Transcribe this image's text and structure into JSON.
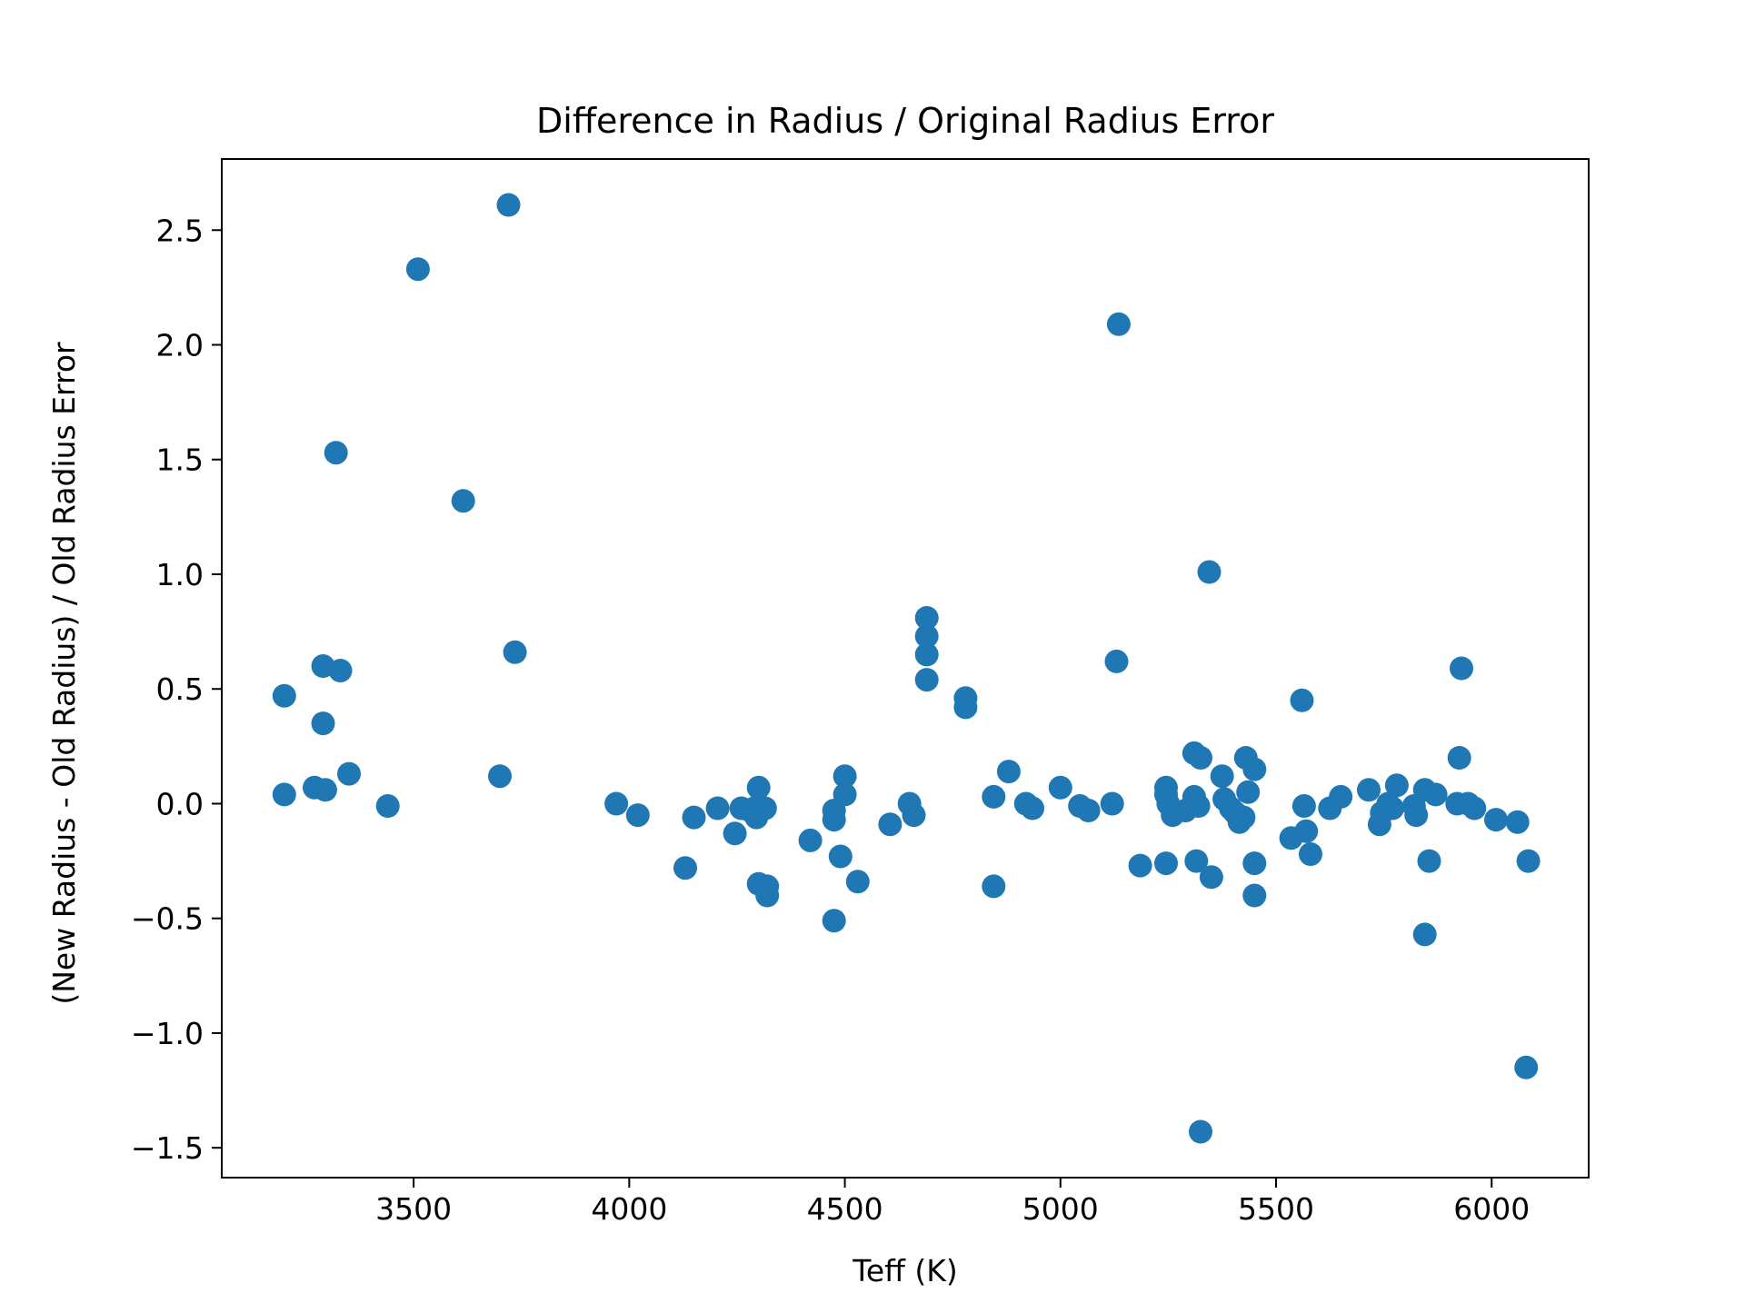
{
  "chart_data": {
    "type": "scatter",
    "title": "Difference in Radius / Original Radius Error",
    "xlabel": "Teff (K)",
    "ylabel": "(New Radius - Old Radius) / Old Radius Error",
    "xlim": [
      3055,
      6225
    ],
    "ylim": [
      -1.63,
      2.81
    ],
    "xticks": [
      3500,
      4000,
      4500,
      5000,
      5500,
      6000
    ],
    "xtick_labels": [
      "3500",
      "4000",
      "4500",
      "5000",
      "5500",
      "6000"
    ],
    "yticks": [
      -1.5,
      -1.0,
      -0.5,
      0.0,
      0.5,
      1.0,
      1.5,
      2.0,
      2.5
    ],
    "ytick_labels": [
      "−1.5",
      "−1.0",
      "−0.5",
      "0.0",
      "0.5",
      "1.0",
      "1.5",
      "2.0",
      "2.5"
    ],
    "grid": false,
    "marker_color": "#1f77b4",
    "points": [
      [
        3200,
        0.47
      ],
      [
        3200,
        0.04
      ],
      [
        3270,
        0.07
      ],
      [
        3290,
        0.6
      ],
      [
        3290,
        0.35
      ],
      [
        3295,
        0.06
      ],
      [
        3320,
        1.53
      ],
      [
        3330,
        0.58
      ],
      [
        3350,
        0.13
      ],
      [
        3440,
        -0.01
      ],
      [
        3510,
        2.33
      ],
      [
        3615,
        1.32
      ],
      [
        3700,
        0.12
      ],
      [
        3720,
        2.61
      ],
      [
        3735,
        0.66
      ],
      [
        3970,
        0.0
      ],
      [
        4020,
        -0.05
      ],
      [
        4130,
        -0.28
      ],
      [
        4150,
        -0.06
      ],
      [
        4205,
        -0.02
      ],
      [
        4245,
        -0.13
      ],
      [
        4260,
        -0.02
      ],
      [
        4280,
        -0.03
      ],
      [
        4290,
        -0.02
      ],
      [
        4295,
        -0.06
      ],
      [
        4300,
        0.07
      ],
      [
        4300,
        -0.35
      ],
      [
        4315,
        -0.02
      ],
      [
        4320,
        -0.36
      ],
      [
        4320,
        -0.4
      ],
      [
        4420,
        -0.16
      ],
      [
        4475,
        -0.03
      ],
      [
        4475,
        -0.07
      ],
      [
        4475,
        -0.51
      ],
      [
        4490,
        -0.23
      ],
      [
        4500,
        0.12
      ],
      [
        4500,
        0.04
      ],
      [
        4530,
        -0.34
      ],
      [
        4605,
        -0.09
      ],
      [
        4650,
        0.0
      ],
      [
        4660,
        -0.05
      ],
      [
        4690,
        0.81
      ],
      [
        4690,
        0.73
      ],
      [
        4690,
        0.65
      ],
      [
        4690,
        0.54
      ],
      [
        4780,
        0.46
      ],
      [
        4780,
        0.42
      ],
      [
        4845,
        0.03
      ],
      [
        4845,
        -0.36
      ],
      [
        4880,
        0.14
      ],
      [
        4920,
        0.0
      ],
      [
        4935,
        -0.02
      ],
      [
        5000,
        0.07
      ],
      [
        5045,
        -0.01
      ],
      [
        5065,
        -0.03
      ],
      [
        5120,
        0.0
      ],
      [
        5130,
        0.62
      ],
      [
        5135,
        2.09
      ],
      [
        5185,
        -0.27
      ],
      [
        5245,
        -0.26
      ],
      [
        5245,
        0.07
      ],
      [
        5245,
        0.04
      ],
      [
        5250,
        0.0
      ],
      [
        5260,
        -0.05
      ],
      [
        5290,
        -0.03
      ],
      [
        5310,
        0.22
      ],
      [
        5310,
        0.03
      ],
      [
        5315,
        -0.25
      ],
      [
        5320,
        -0.01
      ],
      [
        5325,
        0.2
      ],
      [
        5325,
        -1.43
      ],
      [
        5345,
        1.01
      ],
      [
        5350,
        -0.32
      ],
      [
        5375,
        0.12
      ],
      [
        5380,
        0.02
      ],
      [
        5395,
        -0.02
      ],
      [
        5405,
        -0.04
      ],
      [
        5415,
        -0.08
      ],
      [
        5425,
        -0.06
      ],
      [
        5430,
        0.2
      ],
      [
        5435,
        0.05
      ],
      [
        5450,
        0.15
      ],
      [
        5450,
        -0.26
      ],
      [
        5450,
        -0.4
      ],
      [
        5535,
        -0.15
      ],
      [
        5560,
        0.45
      ],
      [
        5565,
        -0.01
      ],
      [
        5570,
        -0.12
      ],
      [
        5580,
        -0.22
      ],
      [
        5625,
        -0.02
      ],
      [
        5650,
        0.03
      ],
      [
        5715,
        0.06
      ],
      [
        5740,
        -0.09
      ],
      [
        5745,
        -0.04
      ],
      [
        5760,
        0.0
      ],
      [
        5770,
        -0.02
      ],
      [
        5780,
        0.08
      ],
      [
        5820,
        -0.01
      ],
      [
        5825,
        -0.05
      ],
      [
        5845,
        0.06
      ],
      [
        5845,
        -0.57
      ],
      [
        5855,
        -0.25
      ],
      [
        5870,
        0.04
      ],
      [
        5920,
        0.0
      ],
      [
        5925,
        0.2
      ],
      [
        5930,
        0.59
      ],
      [
        5945,
        0.0
      ],
      [
        5960,
        -0.02
      ],
      [
        6010,
        -0.07
      ],
      [
        6060,
        -0.08
      ],
      [
        6080,
        -1.15
      ],
      [
        6085,
        -0.25
      ]
    ]
  }
}
